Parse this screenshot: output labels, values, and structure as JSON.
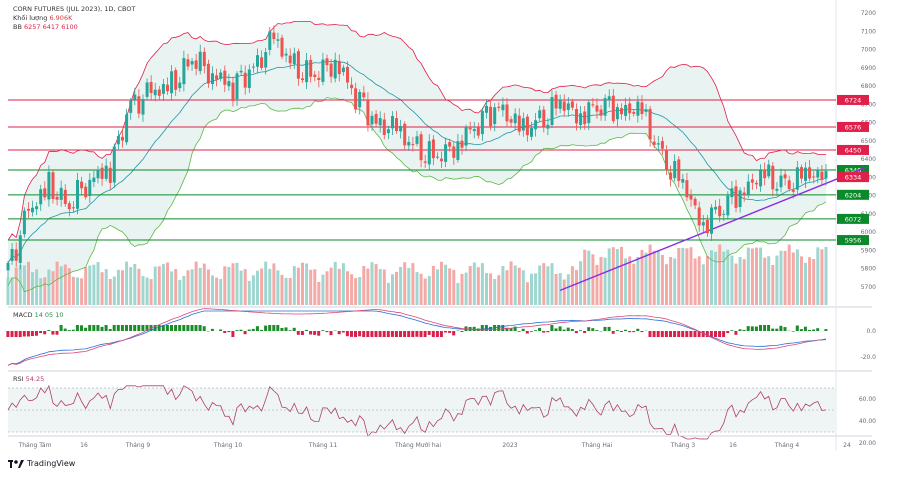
{
  "chart_data": {
    "type": "candlestick",
    "title": "CORN FUTURES (JUL 2023), 1D, CBOT",
    "volume": {
      "label": "Khối lượng",
      "value": "6.906K"
    },
    "bb": {
      "label": "BB",
      "values": [
        "6257",
        "6417",
        "6100"
      ]
    },
    "price_axis": {
      "ylim": [
        5600,
        7250
      ],
      "ticks": [
        "5700",
        "5800",
        "5900",
        "6000",
        "6100",
        "6200",
        "6300",
        "6400",
        "6500",
        "6600",
        "6700",
        "6800",
        "6900",
        "7000",
        "7100",
        "7200"
      ]
    },
    "price_levels": [
      {
        "value": 6724,
        "label": "6724",
        "color": "#e0204a"
      },
      {
        "value": 6576,
        "label": "6576",
        "color": "#e0204a"
      },
      {
        "value": 6450,
        "label": "6450",
        "color": "#e0204a"
      },
      {
        "value": 6340,
        "label": "6340",
        "color": "#0a8a2a"
      },
      {
        "value": 6204,
        "label": "6204",
        "color": "#0a8a2a"
      },
      {
        "value": 6072,
        "label": "6072",
        "color": "#0a8a2a"
      },
      {
        "value": 5956,
        "label": "5956",
        "color": "#0a8a2a"
      }
    ],
    "current_price": {
      "value": 6334,
      "label": "6334",
      "color": "#e0204a"
    },
    "trendline": {
      "from": {
        "date": "2023-01-20",
        "price": 5680
      },
      "to": {
        "date": "2023-04-21",
        "price": 6300
      },
      "color": "#8a2be2"
    },
    "x_ticks": [
      "Tháng Tám",
      "16",
      "Tháng 9",
      "Tháng 10",
      "Tháng 11",
      "Tháng Mười hai",
      "2023",
      "Tháng Hai",
      "Tháng 3",
      "16",
      "Tháng 4",
      "24"
    ],
    "close_series": [
      {
        "date": "2022-07-15",
        "close": 5800
      },
      {
        "date": "2022-07-22",
        "close": 6100
      },
      {
        "date": "2022-07-29",
        "close": 6250
      },
      {
        "date": "2022-08-05",
        "close": 6150
      },
      {
        "date": "2022-08-12",
        "close": 6300
      },
      {
        "date": "2022-08-19",
        "close": 6350
      },
      {
        "date": "2022-08-26",
        "close": 6700
      },
      {
        "date": "2022-09-02",
        "close": 6750
      },
      {
        "date": "2022-09-09",
        "close": 6800
      },
      {
        "date": "2022-09-16",
        "close": 6950
      },
      {
        "date": "2022-09-23",
        "close": 6880
      },
      {
        "date": "2022-09-30",
        "close": 6800
      },
      {
        "date": "2022-10-07",
        "close": 6900
      },
      {
        "date": "2022-10-14",
        "close": 7050
      },
      {
        "date": "2022-10-21",
        "close": 6900
      },
      {
        "date": "2022-10-28",
        "close": 6850
      },
      {
        "date": "2022-11-04",
        "close": 6950
      },
      {
        "date": "2022-11-11",
        "close": 6750
      },
      {
        "date": "2022-11-18",
        "close": 6600
      },
      {
        "date": "2022-11-25",
        "close": 6550
      },
      {
        "date": "2022-12-02",
        "close": 6450
      },
      {
        "date": "2022-12-09",
        "close": 6400
      },
      {
        "date": "2022-12-16",
        "close": 6500
      },
      {
        "date": "2022-12-23",
        "close": 6600
      },
      {
        "date": "2022-12-30",
        "close": 6700
      },
      {
        "date": "2023-01-06",
        "close": 6550
      },
      {
        "date": "2023-01-13",
        "close": 6600
      },
      {
        "date": "2023-01-20",
        "close": 6700
      },
      {
        "date": "2023-01-27",
        "close": 6650
      },
      {
        "date": "2023-02-03",
        "close": 6700
      },
      {
        "date": "2023-02-10",
        "close": 6680
      },
      {
        "date": "2023-02-17",
        "close": 6650
      },
      {
        "date": "2023-02-24",
        "close": 6400
      },
      {
        "date": "2023-03-03",
        "close": 6250
      },
      {
        "date": "2023-03-10",
        "close": 6050
      },
      {
        "date": "2023-03-17",
        "close": 6150
      },
      {
        "date": "2023-03-24",
        "close": 6250
      },
      {
        "date": "2023-03-31",
        "close": 6300
      },
      {
        "date": "2023-04-07",
        "close": 6250
      },
      {
        "date": "2023-04-14",
        "close": 6300
      },
      {
        "date": "2023-04-21",
        "close": 6334
      }
    ],
    "macd": {
      "label": "MACD",
      "params": [
        "14",
        "05",
        "10"
      ],
      "ticks": [
        "0.0",
        "-20.0"
      ]
    },
    "rsi": {
      "label": "RSI",
      "value": "54.25",
      "ticks": [
        "60.00",
        "40.00",
        "20.00"
      ]
    },
    "brand": "TradingView",
    "colors": {
      "up": "#26a69a",
      "down": "#ef5350",
      "bb_line": "#e0204a",
      "bb_mid": "#2196a8",
      "bb_low": "#5db84a",
      "bb_fill": "#e9f3f1"
    }
  }
}
